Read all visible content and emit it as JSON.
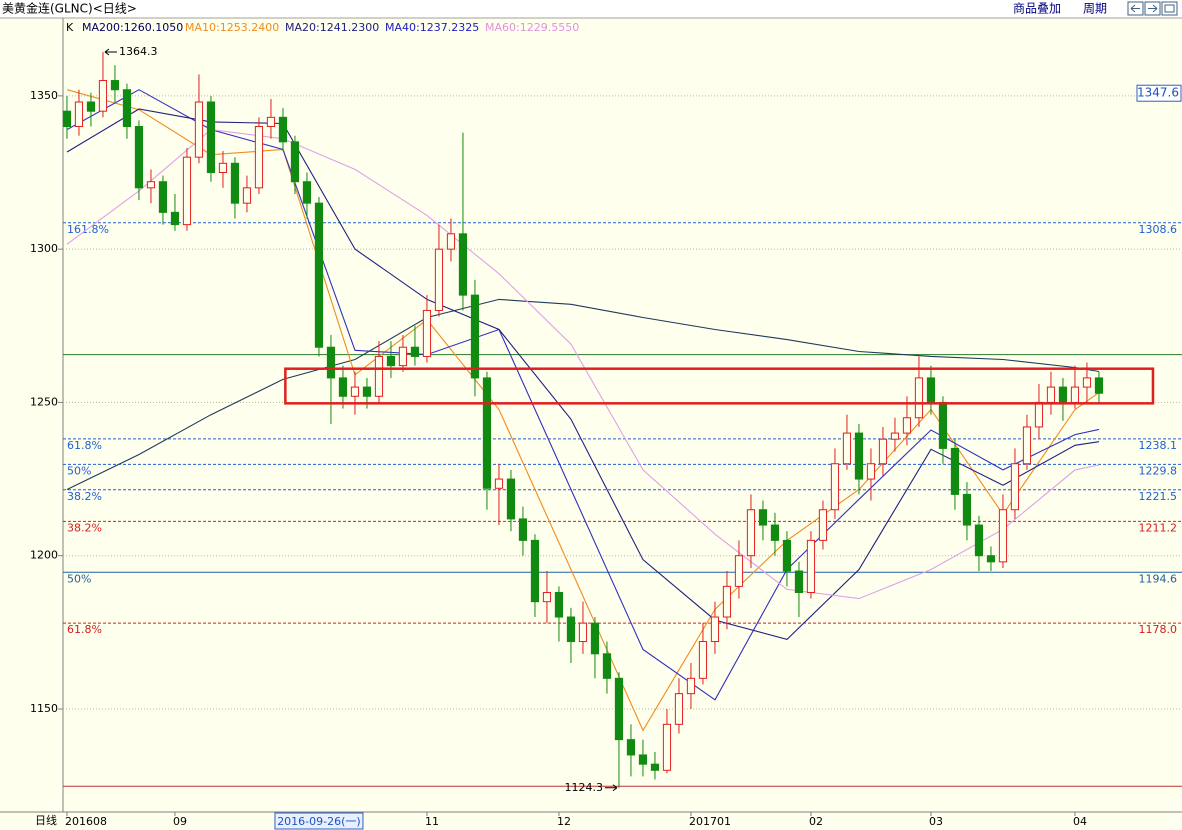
{
  "header": {
    "title": "美黄金连(GLNC)<日线>",
    "buttons": [
      "商品叠加",
      "周期"
    ]
  },
  "chart_data": {
    "type": "candlestick",
    "period_label": "日线",
    "candle_label": "K",
    "ylim": [
      1117.7,
      1375.4
    ],
    "yticks": [
      1150,
      1200,
      1250,
      1300,
      1350
    ],
    "xlim": [
      -0.33,
      92.92
    ],
    "up_color": "#e02020",
    "down_color": "#108a10",
    "grid": true,
    "candles": [
      [
        1345,
        1350,
        1336,
        1340
      ],
      [
        1340,
        1352,
        1337,
        1348
      ],
      [
        1348,
        1351,
        1340,
        1345
      ],
      [
        1345,
        1364.3,
        1343,
        1355
      ],
      [
        1355,
        1360,
        1348,
        1352
      ],
      [
        1352,
        1354,
        1336,
        1340
      ],
      [
        1340,
        1342,
        1316,
        1320
      ],
      [
        1320,
        1326,
        1315,
        1322
      ],
      [
        1322,
        1324,
        1308,
        1312
      ],
      [
        1312,
        1318,
        1306,
        1308
      ],
      [
        1308,
        1333,
        1306,
        1330
      ],
      [
        1330,
        1357,
        1328,
        1348
      ],
      [
        1348,
        1350,
        1322,
        1325
      ],
      [
        1325,
        1332,
        1320,
        1328
      ],
      [
        1328,
        1330,
        1310,
        1315
      ],
      [
        1315,
        1324,
        1312,
        1320
      ],
      [
        1320,
        1343,
        1318,
        1340
      ],
      [
        1340,
        1349,
        1336,
        1343
      ],
      [
        1343,
        1346,
        1332,
        1335
      ],
      [
        1335,
        1337,
        1318,
        1322
      ],
      [
        1322,
        1325,
        1310,
        1315
      ],
      [
        1315,
        1317,
        1265,
        1268
      ],
      [
        1268,
        1272,
        1243,
        1258
      ],
      [
        1258,
        1262,
        1248,
        1252
      ],
      [
        1252,
        1260,
        1246,
        1255
      ],
      [
        1255,
        1258,
        1248,
        1252
      ],
      [
        1252,
        1270,
        1250,
        1265
      ],
      [
        1265,
        1270,
        1258,
        1262
      ],
      [
        1262,
        1272,
        1260,
        1268
      ],
      [
        1268,
        1275,
        1262,
        1265
      ],
      [
        1265,
        1285,
        1263,
        1280
      ],
      [
        1280,
        1308,
        1278,
        1300
      ],
      [
        1300,
        1310,
        1296,
        1305
      ],
      [
        1305,
        1338,
        1280,
        1285
      ],
      [
        1285,
        1290,
        1252,
        1258
      ],
      [
        1258,
        1260,
        1215,
        1222
      ],
      [
        1222,
        1230,
        1210,
        1225
      ],
      [
        1225,
        1228,
        1208,
        1212
      ],
      [
        1212,
        1216,
        1200,
        1205
      ],
      [
        1205,
        1207,
        1180,
        1185
      ],
      [
        1185,
        1195,
        1178,
        1188
      ],
      [
        1188,
        1190,
        1172,
        1180
      ],
      [
        1180,
        1183,
        1165,
        1172
      ],
      [
        1172,
        1185,
        1168,
        1178
      ],
      [
        1178,
        1180,
        1160,
        1168
      ],
      [
        1168,
        1172,
        1155,
        1160
      ],
      [
        1160,
        1162,
        1124.3,
        1140
      ],
      [
        1140,
        1145,
        1128,
        1135
      ],
      [
        1135,
        1140,
        1128,
        1132
      ],
      [
        1132,
        1136,
        1127,
        1130
      ],
      [
        1130,
        1150,
        1129,
        1145
      ],
      [
        1145,
        1160,
        1142,
        1155
      ],
      [
        1155,
        1165,
        1150,
        1160
      ],
      [
        1160,
        1178,
        1158,
        1172
      ],
      [
        1172,
        1185,
        1168,
        1180
      ],
      [
        1180,
        1195,
        1176,
        1190
      ],
      [
        1190,
        1205,
        1186,
        1200
      ],
      [
        1200,
        1220,
        1196,
        1215
      ],
      [
        1215,
        1218,
        1205,
        1210
      ],
      [
        1210,
        1214,
        1200,
        1205
      ],
      [
        1205,
        1208,
        1190,
        1195
      ],
      [
        1195,
        1198,
        1180,
        1188
      ],
      [
        1188,
        1208,
        1186,
        1205
      ],
      [
        1205,
        1218,
        1202,
        1215
      ],
      [
        1215,
        1235,
        1212,
        1230
      ],
      [
        1230,
        1246,
        1228,
        1240
      ],
      [
        1240,
        1243,
        1220,
        1225
      ],
      [
        1225,
        1235,
        1218,
        1230
      ],
      [
        1230,
        1242,
        1226,
        1238
      ],
      [
        1238,
        1245,
        1234,
        1240
      ],
      [
        1240,
        1252,
        1236,
        1245
      ],
      [
        1245,
        1265,
        1242,
        1258
      ],
      [
        1258,
        1262,
        1246,
        1250
      ],
      [
        1250,
        1252,
        1230,
        1235
      ],
      [
        1235,
        1238,
        1215,
        1220
      ],
      [
        1220,
        1224,
        1205,
        1210
      ],
      [
        1210,
        1213,
        1195,
        1200
      ],
      [
        1200,
        1203,
        1195,
        1198
      ],
      [
        1198,
        1220,
        1196,
        1215
      ],
      [
        1215,
        1235,
        1212,
        1230
      ],
      [
        1230,
        1246,
        1228,
        1242
      ],
      [
        1242,
        1256,
        1238,
        1250
      ],
      [
        1250,
        1260,
        1246,
        1255
      ],
      [
        1255,
        1258,
        1244,
        1250
      ],
      [
        1250,
        1262,
        1248,
        1255
      ],
      [
        1255,
        1263,
        1250,
        1258
      ],
      [
        1258,
        1260,
        1250,
        1253
      ]
    ],
    "xlabels": [
      {
        "index": 0,
        "label": "201608"
      },
      {
        "index": 9,
        "label": "09"
      },
      {
        "index": 21,
        "label": "2016-09-26(一)",
        "selected": true
      },
      {
        "index": 30,
        "label": "11"
      },
      {
        "index": 41,
        "label": "12"
      },
      {
        "index": 52,
        "label": "201701"
      },
      {
        "index": 62,
        "label": "02"
      },
      {
        "index": 72,
        "label": "03"
      },
      {
        "index": 84,
        "label": "04"
      }
    ],
    "ma_x": [
      0,
      6,
      12,
      18,
      24,
      30,
      36,
      42,
      48,
      54,
      60,
      66,
      72,
      78,
      84,
      86
    ],
    "mas": [
      {
        "name": "MA200:1260.1050",
        "color": "#1e3a5a",
        "text_color": "#000060",
        "values": [
          1221.6,
          1233,
          1246,
          1257.5,
          1264,
          1277.7,
          1283.6,
          1282,
          1277.7,
          1273.8,
          1270.5,
          1266.6,
          1265,
          1264,
          1261.4,
          1260.1
        ]
      },
      {
        "name": "MA10:1253.2400",
        "color": "#f08c1e",
        "text_color": "#f08c1e",
        "values": [
          1352,
          1345.5,
          1330.8,
          1332.5,
          1259,
          1277,
          1247.7,
          1195.5,
          1143,
          1182.5,
          1205,
          1221.6,
          1247.7,
          1213.5,
          1247.7,
          1253.2
        ]
      },
      {
        "name": "MA20:1241.2300",
        "color": "#3030c0",
        "text_color": "#202080",
        "values": [
          1339,
          1352,
          1339,
          1332.5,
          1267,
          1265.6,
          1273.8,
          1221.6,
          1169.4,
          1153,
          1195.5,
          1218.4,
          1241,
          1228,
          1239.5,
          1241.2
        ]
      },
      {
        "name": "MA40:1237.2325",
        "color": "#202080",
        "text_color": "#2020c0",
        "values": [
          1331.7,
          1345.7,
          1341.5,
          1341,
          1300,
          1283.6,
          1273.8,
          1244.5,
          1198.7,
          1179,
          1172.7,
          1195.5,
          1234.7,
          1223,
          1236,
          1237.2
        ]
      },
      {
        "name": "MA60:1229.5550",
        "color": "#e0a0e8",
        "text_color": "#e090e0",
        "values": [
          1301.6,
          1319,
          1339,
          1336,
          1326,
          1311,
          1292,
          1269,
          1228,
          1207,
          1189,
          1186,
          1195.5,
          1208.6,
          1228,
          1229.6
        ]
      }
    ],
    "levels": [
      {
        "value": 1308.6,
        "pct": "161.8%",
        "color": "#2060d0",
        "style": "dashed"
      },
      {
        "value": 1265.6,
        "color": "#2a7a2a",
        "style": "solid"
      },
      {
        "value": 1238.1,
        "pct": "61.8%",
        "color": "#2060d0",
        "style": "dashed"
      },
      {
        "value": 1229.8,
        "pct": "50%",
        "color": "#2060d0",
        "style": "dashed"
      },
      {
        "value": 1221.5,
        "pct": "38.2%",
        "color": "#2060d0",
        "style": "dashed"
      },
      {
        "value": 1211.2,
        "pct": "38.2%",
        "color": "#d02020",
        "style": "dashed"
      },
      {
        "value": 1194.6,
        "pct": "50%",
        "color": "#2060a0",
        "style": "solid"
      },
      {
        "value": 1178,
        "label": "1178.0",
        "pct": "61.8%",
        "color": "#d02020",
        "style": "dashed"
      },
      {
        "value": 1124.8,
        "color": "#c03030",
        "style": "solid"
      }
    ],
    "highlight_box": {
      "x_from": 18.2,
      "x_to": 90.5,
      "low": 1249.7,
      "high": 1261,
      "color": "#e02020"
    },
    "annotations": [
      {
        "candle": 3,
        "value": 1364.3,
        "side": "right"
      },
      {
        "candle": 46,
        "value": 1124.3,
        "side": "left"
      }
    ],
    "last_price": 1347.6
  }
}
